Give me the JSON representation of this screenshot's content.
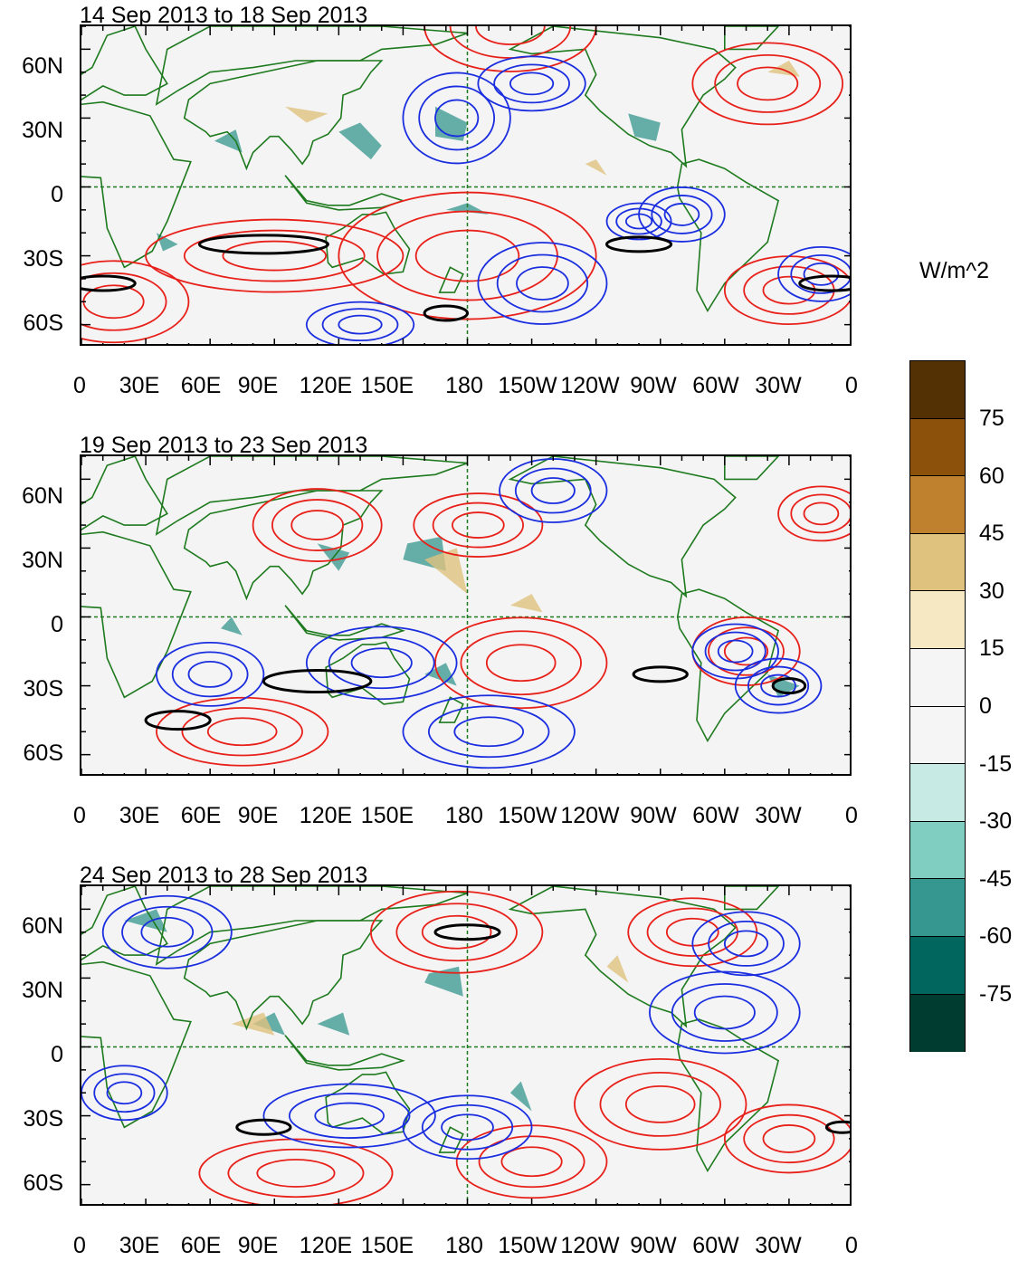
{
  "panels": [
    {
      "title": "14 Sep 2013 to 18 Sep 2013"
    },
    {
      "title": "19 Sep 2013 to 23 Sep 2013"
    },
    {
      "title": "24 Sep 2013 to 28 Sep 2013"
    }
  ],
  "y_axis_labels": [
    "60N",
    "30N",
    "0",
    "30S",
    "60S"
  ],
  "x_axis_labels": [
    "0",
    "30E",
    "60E",
    "90E",
    "120E",
    "150E",
    "180",
    "150W",
    "120W",
    "90W",
    "60W",
    "30W",
    "0"
  ],
  "colorbar": {
    "title": "W/m^2",
    "labels": [
      "75",
      "60",
      "45",
      "30",
      "15",
      "0",
      "-15",
      "-30",
      "-45",
      "-60",
      "-75"
    ],
    "colors": [
      "#543005",
      "#8c510a",
      "#bf812d",
      "#dfc27d",
      "#f6e8c3",
      "#f5f5f5",
      "#f5f5f5",
      "#c7eae5",
      "#80cdc1",
      "#35978f",
      "#01665e",
      "#003c30"
    ]
  },
  "colors": {
    "positive_contour": "#e8201a",
    "negative_contour": "#1a2ee0",
    "coastline": "#1e7a1e",
    "reference_line": "#1e7a1e"
  }
}
